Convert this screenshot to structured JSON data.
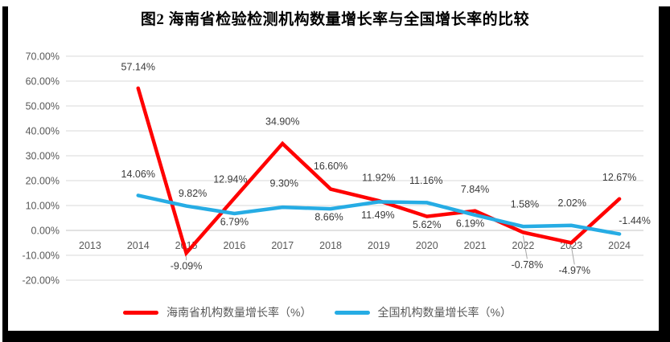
{
  "chart_data": {
    "type": "line",
    "title": "图2 海南省检验检测机构数量增长率与全国增长率的比较",
    "categories": [
      "2013",
      "2014",
      "2015",
      "2016",
      "2017",
      "2018",
      "2019",
      "2020",
      "2021",
      "2022",
      "2023",
      "2024"
    ],
    "series": [
      {
        "name": "海南省机构数量增长率（%）",
        "color": "#FF0000",
        "values": [
          null,
          57.14,
          -9.09,
          12.94,
          34.9,
          16.6,
          11.92,
          5.62,
          7.84,
          -0.78,
          -4.97,
          12.67
        ],
        "label_offsets": [
          null,
          [
            0,
            -27
          ],
          [
            0,
            16
          ],
          [
            -5,
            -24
          ],
          [
            0,
            -28
          ],
          [
            0,
            -29
          ],
          [
            0,
            -29
          ],
          [
            0,
            10
          ],
          [
            0,
            -27
          ],
          [
            5,
            40
          ],
          [
            4,
            34
          ],
          [
            0,
            -27
          ]
        ],
        "label_leaders": [
          false,
          false,
          true,
          false,
          false,
          false,
          false,
          false,
          false,
          true,
          true,
          false
        ]
      },
      {
        "name": "全国机构数量增长率（%）",
        "color": "#26ACE4",
        "values": [
          null,
          14.06,
          9.82,
          6.79,
          9.3,
          8.66,
          11.49,
          11.16,
          6.19,
          1.58,
          2.02,
          -1.44
        ],
        "label_offsets": [
          null,
          [
            0,
            -27
          ],
          [
            8,
            -16
          ],
          [
            0,
            10
          ],
          [
            2,
            -30
          ],
          [
            -2,
            10
          ],
          [
            -1,
            16
          ],
          [
            -1,
            -28
          ],
          [
            -6,
            10
          ],
          [
            2,
            -28
          ],
          [
            1,
            -28
          ],
          [
            19,
            -17
          ]
        ],
        "label_leaders": [
          false,
          false,
          false,
          false,
          false,
          false,
          false,
          false,
          false,
          false,
          false,
          false
        ]
      }
    ],
    "y_axis": {
      "min": -20,
      "max": 70,
      "step": 10,
      "ticks": [
        70,
        60,
        50,
        40,
        30,
        20,
        10,
        0,
        -10,
        -20
      ],
      "tick_suffix": "%"
    },
    "grid": true,
    "legend_position": "bottom",
    "colors": {
      "grid": "#D9D9D9",
      "zero_line": "#C6C6C6",
      "axis_text": "#595959",
      "label_text": "#3A3A3A",
      "leader_line": "#A6A6A6"
    }
  }
}
